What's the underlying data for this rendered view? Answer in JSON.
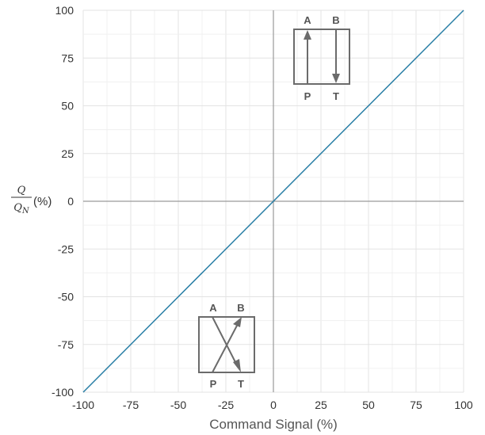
{
  "chart_data": {
    "type": "line",
    "xlabel": "Command Signal (%)",
    "ylabel": {
      "numerator": "Q",
      "denominator": "Q",
      "denominator_subscript": "N",
      "unit": "(%)"
    },
    "xlim": [
      -100,
      100
    ],
    "ylim": [
      -100,
      100
    ],
    "x_ticks": [
      -100,
      -75,
      -50,
      -25,
      0,
      25,
      50,
      75,
      100
    ],
    "y_ticks": [
      -100,
      -75,
      -50,
      -25,
      0,
      25,
      50,
      75,
      100
    ],
    "x_tick_labels": [
      "-100",
      "-75",
      "-50",
      "-25",
      "0",
      "25",
      "50",
      "75",
      "100"
    ],
    "y_tick_labels": [
      "-100",
      "-75",
      "-50",
      "-25",
      "0",
      "25",
      "50",
      "75",
      "100"
    ],
    "grid": true,
    "series": [
      {
        "color": "#2a7fa6",
        "x": [
          -100,
          100
        ],
        "y": [
          -100,
          100
        ]
      }
    ],
    "annotations": [
      {
        "kind": "valve-parallel",
        "quadrant": "top-right",
        "labels": {
          "top_left": "A",
          "top_right": "B",
          "bottom_left": "P",
          "bottom_right": "T"
        }
      },
      {
        "kind": "valve-crossed",
        "quadrant": "bottom-left",
        "labels": {
          "top_left": "A",
          "top_right": "B",
          "bottom_left": "P",
          "bottom_right": "T"
        }
      }
    ]
  },
  "colors": {
    "line": "#2a7fa6",
    "grid": "#e3e3e3",
    "axis": "#9a9a9a",
    "valve": "#6b6b6b"
  }
}
